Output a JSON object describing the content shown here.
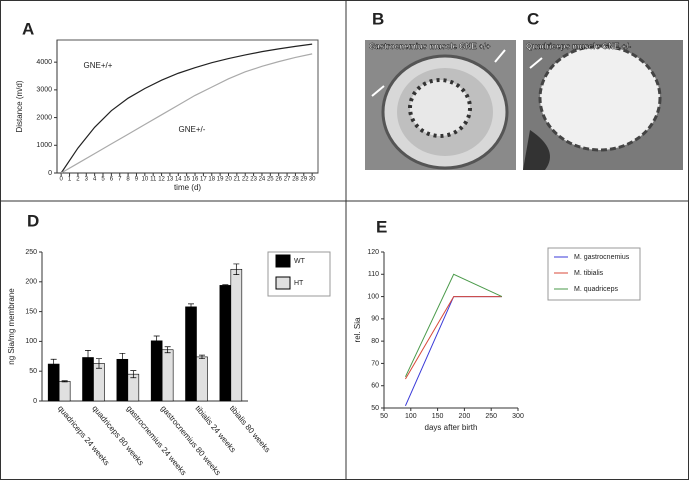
{
  "chart_data": [
    {
      "type": "line",
      "panel": "A",
      "xlabel": "time (d)",
      "ylabel": "Distance (m/d)",
      "x": [
        0,
        2,
        4,
        6,
        8,
        10,
        12,
        14,
        16,
        18,
        20,
        22,
        24,
        26,
        28,
        30
      ],
      "series": [
        {
          "name": "GNE+/+",
          "color": "#222222",
          "values": [
            0,
            900,
            1650,
            2250,
            2700,
            3050,
            3350,
            3600,
            3800,
            3980,
            4130,
            4260,
            4380,
            4480,
            4570,
            4650
          ]
        },
        {
          "name": "GNE+/-",
          "color": "#aaaaaa",
          "values": [
            0,
            350,
            700,
            1050,
            1400,
            1750,
            2100,
            2450,
            2800,
            3100,
            3400,
            3650,
            3850,
            4020,
            4170,
            4300
          ]
        }
      ],
      "xlim": [
        -0.5,
        30.7
      ],
      "xticks": [
        0,
        1,
        2,
        3,
        4,
        5,
        6,
        7,
        8,
        9,
        10,
        11,
        12,
        13,
        14,
        15,
        16,
        17,
        18,
        19,
        20,
        21,
        22,
        23,
        24,
        25,
        26,
        27,
        28,
        29,
        30
      ],
      "ylim": [
        0,
        4800
      ],
      "yticks": [
        0,
        1000,
        2000,
        3000,
        4000
      ]
    },
    {
      "type": "bar",
      "panel": "D",
      "ylabel": "ng Sia/mg membrane",
      "categories": [
        "quadriceps 24 weeks",
        "quadriceps 80 weeks",
        "gastrocnemius 24 weeks",
        "gastrocnemius 80 weeks",
        "tibialis 24 weeks",
        "tibialis 80 weeks"
      ],
      "series": [
        {
          "name": "WT",
          "color": "#000000",
          "values": [
            62,
            73,
            70,
            101,
            158,
            194
          ],
          "errors": [
            8,
            12,
            10,
            8,
            5,
            1
          ]
        },
        {
          "name": "HT",
          "color": "#e0e0e0",
          "values": [
            33,
            63,
            45,
            86,
            74,
            221
          ],
          "errors": [
            1,
            8,
            6,
            5,
            3,
            9
          ]
        }
      ],
      "ylim": [
        0,
        250
      ],
      "yticks": [
        0,
        50,
        100,
        150,
        200,
        250
      ],
      "legend": "right"
    },
    {
      "type": "line",
      "panel": "E",
      "xlabel": "days after birth",
      "ylabel": "rel. Sia",
      "x": [
        90,
        180,
        270
      ],
      "series": [
        {
          "name": "M. gastrocnemius",
          "color": "#3a3ad8",
          "values": [
            51,
            100,
            100
          ]
        },
        {
          "name": "M. tibialis",
          "color": "#d84a3a",
          "values": [
            63,
            100,
            100
          ]
        },
        {
          "name": "M. quadriceps",
          "color": "#4a9a4a",
          "values": [
            64,
            110,
            100
          ]
        }
      ],
      "xlim": [
        50,
        300
      ],
      "xticks": [
        50,
        100,
        150,
        200,
        250,
        300
      ],
      "ylim": [
        50,
        120
      ],
      "yticks": [
        50,
        60,
        70,
        80,
        90,
        100,
        110,
        120
      ],
      "legend": "right"
    }
  ],
  "images": [
    {
      "panel": "B",
      "caption": "Gastrocnemius muscle GNE +/+"
    },
    {
      "panel": "C",
      "caption": "Quadriceps muscle GNE +/-"
    }
  ]
}
